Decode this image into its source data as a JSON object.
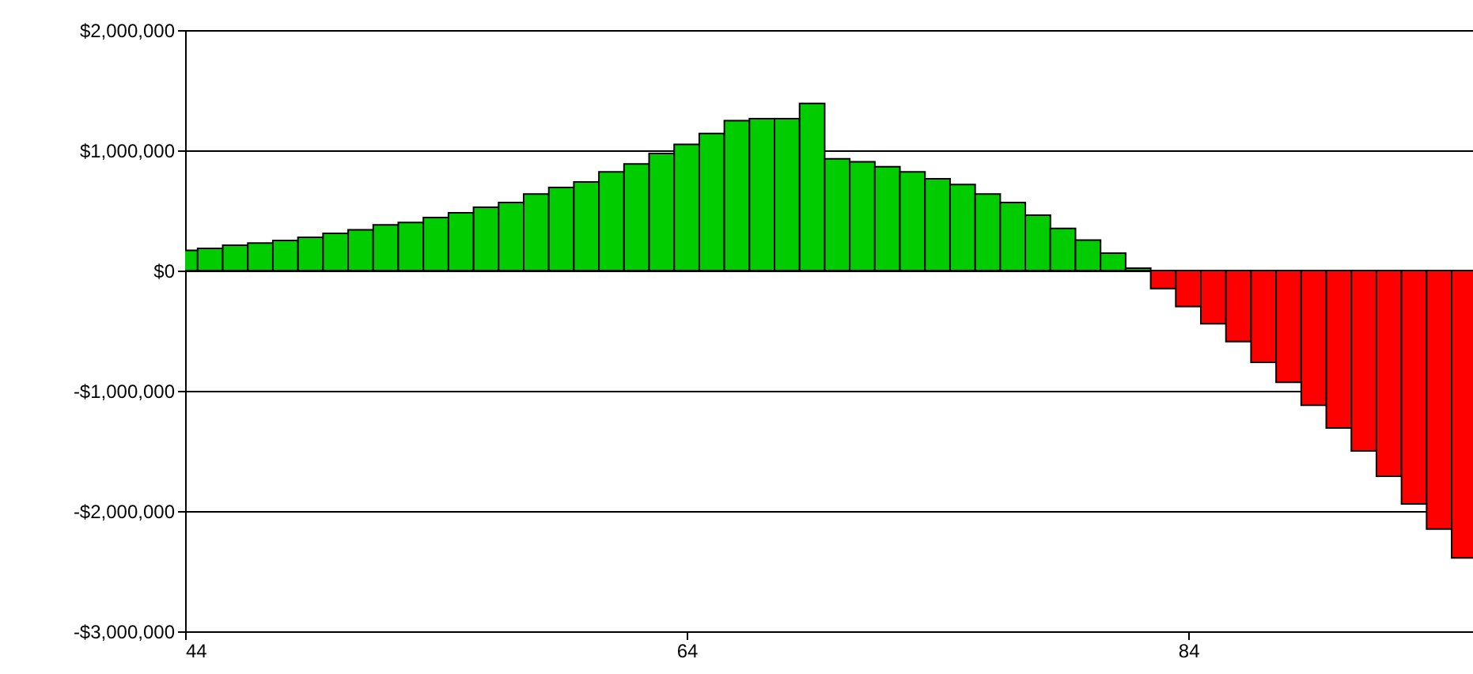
{
  "chart_data": {
    "type": "bar",
    "x": [
      44,
      45,
      46,
      47,
      48,
      49,
      50,
      51,
      52,
      53,
      54,
      55,
      56,
      57,
      58,
      59,
      60,
      61,
      62,
      63,
      64,
      65,
      66,
      67,
      68,
      69,
      70,
      71,
      72,
      73,
      74,
      75,
      76,
      77,
      78,
      79,
      80,
      81,
      82,
      83,
      84,
      85,
      86,
      87,
      88,
      89,
      90,
      91,
      92,
      93,
      94,
      95
    ],
    "values": [
      167000,
      184000,
      210000,
      228000,
      250000,
      276000,
      310000,
      338000,
      380000,
      400000,
      440000,
      480000,
      526000,
      566000,
      636000,
      690000,
      737000,
      820000,
      886000,
      974000,
      1050000,
      1140000,
      1246000,
      1263000,
      1263000,
      1390000,
      930000,
      904000,
      864000,
      820000,
      763000,
      715000,
      636000,
      566000,
      460000,
      350000,
      254000,
      145000,
      20000,
      -149000,
      -300000,
      -443000,
      -590000,
      -763000,
      -930000,
      -1120000,
      -1310000,
      -1500000,
      -1710000,
      -1940000,
      -2150000,
      -2390000
    ],
    "colors": [
      "#00cc00",
      "#00cc00",
      "#00cc00",
      "#00cc00",
      "#00cc00",
      "#00cc00",
      "#00cc00",
      "#00cc00",
      "#00cc00",
      "#00cc00",
      "#00cc00",
      "#00cc00",
      "#00cc00",
      "#00cc00",
      "#00cc00",
      "#00cc00",
      "#00cc00",
      "#00cc00",
      "#00cc00",
      "#00cc00",
      "#00cc00",
      "#00cc00",
      "#00cc00",
      "#00cc00",
      "#00cc00",
      "#00cc00",
      "#00cc00",
      "#00cc00",
      "#00cc00",
      "#00cc00",
      "#00cc00",
      "#00cc00",
      "#00cc00",
      "#00cc00",
      "#00cc00",
      "#00cc00",
      "#00cc00",
      "#00cc00",
      "#00cc00",
      "#ff0000",
      "#ff0000",
      "#ff0000",
      "#ff0000",
      "#ff0000",
      "#ff0000",
      "#ff0000",
      "#ff0000",
      "#ff0000",
      "#ff0000",
      "#ff0000",
      "#ff0000",
      "#ff0000"
    ],
    "xlim": [
      44,
      95.35
    ],
    "xticks": [
      44,
      64,
      84
    ],
    "ylim": [
      -3000000,
      2000000
    ],
    "yticks": [
      {
        "value": -3000000,
        "label": "-$3,000,000"
      },
      {
        "value": -2000000,
        "label": "-$2,000,000"
      },
      {
        "value": -1000000,
        "label": "-$1,000,000"
      },
      {
        "value": 0,
        "label": "$0"
      },
      {
        "value": 1000000,
        "label": "$1,000,000"
      },
      {
        "value": 2000000,
        "label": "$2,000,000"
      }
    ],
    "grid": "y"
  }
}
